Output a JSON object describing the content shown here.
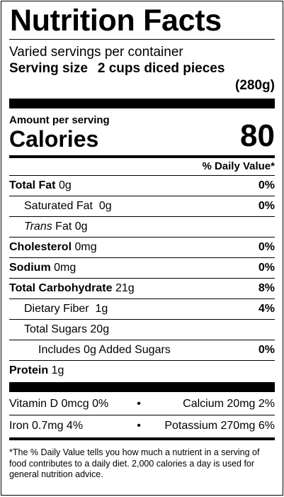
{
  "title": "Nutrition Facts",
  "servings_per_container": "Varied servings per container",
  "serving_size": {
    "label": "Serving size",
    "amount": "2 cups diced pieces",
    "grams": "(280g)"
  },
  "amount_per_serving": "Amount per serving",
  "calories": {
    "label": "Calories",
    "value": "80"
  },
  "daily_value_header": "% Daily Value*",
  "nutrients": [
    {
      "name": "Total Fat",
      "amount": "0g",
      "dv": "0%"
    },
    {
      "name": "Saturated Fat",
      "amount": "0g",
      "dv": "0%"
    },
    {
      "name": "Trans",
      "suffix": "Fat",
      "amount": "0g",
      "dv": ""
    },
    {
      "name": "Cholesterol",
      "amount": "0mg",
      "dv": "0%"
    },
    {
      "name": "Sodium",
      "amount": "0mg",
      "dv": "0%"
    },
    {
      "name": "Total Carbohydrate",
      "amount": "21g",
      "dv": "8%"
    },
    {
      "name": "Dietary Fiber",
      "amount": "1g",
      "dv": "4%"
    },
    {
      "name": "Total Sugars",
      "amount": "20g",
      "dv": ""
    },
    {
      "name": "Includes 0g Added Sugars",
      "amount": "",
      "dv": "0%"
    },
    {
      "name": "Protein",
      "amount": "1g",
      "dv": ""
    }
  ],
  "vitamins": [
    {
      "left": "Vitamin D 0mcg 0%",
      "sep": "•",
      "right": "Calcium 20mg 2%"
    },
    {
      "left": "Iron 0.7mg 4%",
      "sep": "•",
      "right": "Potassium 270mg 6%"
    }
  ],
  "footnote": "*The % Daily Value tells you how much a nutrient in a serving of food contributes to a daily diet. 2,000 calories a day is used for general nutrition advice."
}
